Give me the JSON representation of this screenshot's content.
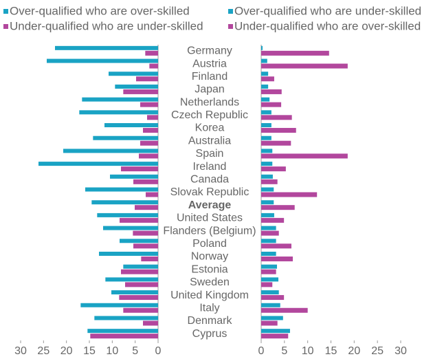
{
  "chart_data": {
    "type": "bar",
    "orientation": "horizontal",
    "categories": [
      "Germany",
      "Austria",
      "Finland",
      "Japan",
      "Netherlands",
      "Czech Republic",
      "Korea",
      "Australia",
      "Spain",
      "Ireland",
      "Canada",
      "Slovak Republic",
      "Average",
      "United States",
      "Flanders (Belgium)",
      "Poland",
      "Norway",
      "Estonia",
      "Sweden",
      "United Kingdom",
      "Italy",
      "Denmark",
      "Cyprus"
    ],
    "highlight_index": 12,
    "xlim": [
      30,
      0
    ],
    "xticks": [
      30,
      25,
      20,
      15,
      10,
      5,
      0
    ],
    "x2lim": [
      0,
      30
    ],
    "x2ticks": [
      0,
      5,
      10,
      15,
      20,
      25,
      30
    ],
    "series": [
      {
        "name": "Over-qualified who are over-skilled",
        "color": "#1aa3c4",
        "axis": "x",
        "values": [
          22.5,
          24.3,
          10.8,
          9.4,
          16.6,
          17.2,
          11.7,
          14.2,
          20.7,
          26.1,
          10.5,
          15.9,
          14.5,
          13.3,
          12.0,
          8.4,
          12.9,
          7.6,
          11.5,
          10.2,
          16.9,
          13.9,
          15.4
        ]
      },
      {
        "name": "Over-qualified who are under-skilled",
        "color": "#1aa3c4",
        "axis": "x2",
        "values": [
          0.3,
          1.3,
          1.5,
          1.5,
          1.8,
          2.2,
          2.2,
          2.2,
          2.4,
          2.4,
          2.5,
          2.7,
          2.7,
          2.8,
          3.2,
          3.2,
          3.2,
          3.4,
          3.7,
          3.8,
          4.1,
          4.7,
          6.2
        ]
      },
      {
        "name": "Under-qualified who are under-skilled",
        "color": "#b2479d",
        "axis": "x",
        "values": [
          2.8,
          1.9,
          4.8,
          7.6,
          3.9,
          2.4,
          3.3,
          3.9,
          4.2,
          8.1,
          5.4,
          2.7,
          5.1,
          8.4,
          5.5,
          5.4,
          3.7,
          8.1,
          7.2,
          8.5,
          7.6,
          3.3,
          14.8
        ]
      },
      {
        "name": "Under-qualified who are over-skilled",
        "color": "#b2479d",
        "axis": "x2",
        "values": [
          14.6,
          18.6,
          2.8,
          4.4,
          4.3,
          6.6,
          7.5,
          6.4,
          18.6,
          5.3,
          3.5,
          12.0,
          7.2,
          4.9,
          3.8,
          6.5,
          6.8,
          3.2,
          2.4,
          4.9,
          10.0,
          3.5,
          5.8
        ]
      }
    ]
  }
}
